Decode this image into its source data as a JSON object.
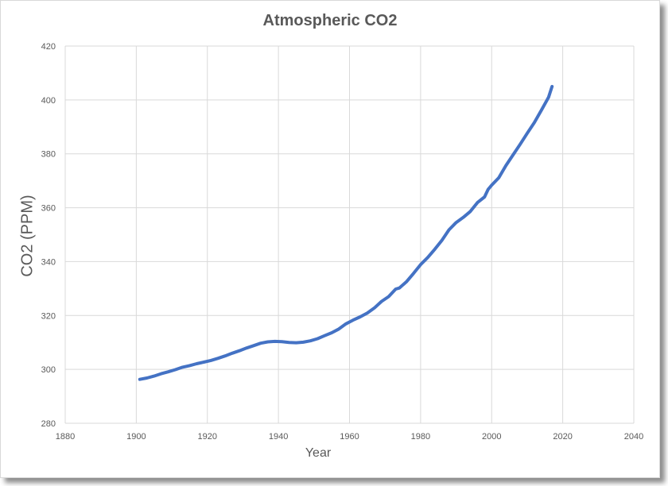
{
  "chart_data": {
    "type": "line",
    "title": "Atmospheric CO2",
    "xlabel": "Year",
    "ylabel": "CO2 (PPM)",
    "xlim": [
      1880,
      2040
    ],
    "ylim": [
      280,
      420
    ],
    "xticks": [
      1880,
      1900,
      1920,
      1940,
      1960,
      1980,
      2000,
      2020,
      2040
    ],
    "yticks": [
      280,
      300,
      320,
      340,
      360,
      380,
      400,
      420
    ],
    "grid": true,
    "line_color": "#4472C4",
    "series": [
      {
        "x": [
          1901,
          1903,
          1905,
          1907,
          1909,
          1911,
          1913,
          1915,
          1917,
          1919,
          1921,
          1923,
          1925,
          1927,
          1929,
          1931,
          1933,
          1935,
          1937,
          1939,
          1941,
          1943,
          1945,
          1947,
          1949,
          1951,
          1953,
          1955,
          1957,
          1959,
          1961,
          1963,
          1965,
          1967,
          1969,
          1971,
          1973,
          1974,
          1976,
          1978,
          1980,
          1982,
          1984,
          1986,
          1988,
          1990,
          1992,
          1994,
          1996,
          1998,
          1999,
          2000,
          2002,
          2004,
          2006,
          2008,
          2010,
          2012,
          2014,
          2016,
          2017
        ],
        "y": [
          296.3,
          296.8,
          297.5,
          298.4,
          299.1,
          299.9,
          300.8,
          301.4,
          302.1,
          302.7,
          303.3,
          304.1,
          305.0,
          306.0,
          306.9,
          307.9,
          308.8,
          309.7,
          310.2,
          310.4,
          310.3,
          310.0,
          309.9,
          310.1,
          310.6,
          311.4,
          312.5,
          313.6,
          315.0,
          316.9,
          318.3,
          319.5,
          320.9,
          322.8,
          325.2,
          327.0,
          329.8,
          330.2,
          332.5,
          335.6,
          338.9,
          341.5,
          344.6,
          347.9,
          351.8,
          354.5,
          356.4,
          358.6,
          361.9,
          364.0,
          366.8,
          368.4,
          371.1,
          375.6,
          379.6,
          383.5,
          387.6,
          391.6,
          396.2,
          401.0,
          405.0
        ]
      }
    ]
  }
}
